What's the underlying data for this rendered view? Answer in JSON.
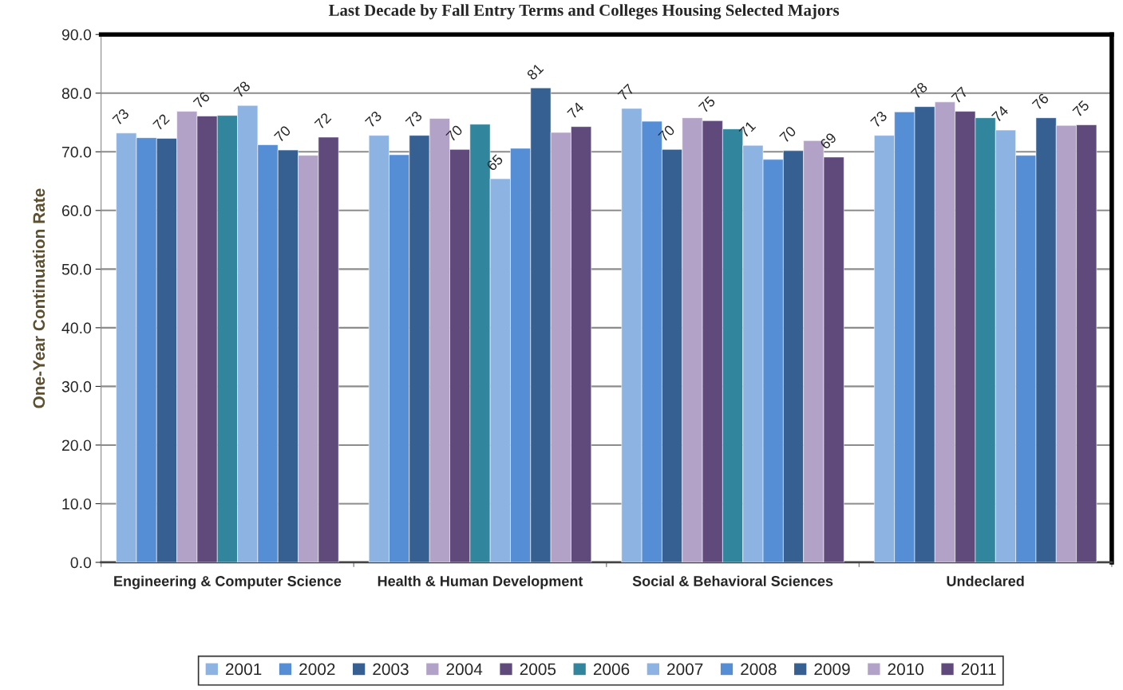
{
  "chart_data": {
    "type": "bar",
    "title": "Last Decade by Fall Entry Terms and Colleges Housing Selected Majors",
    "ylabel": "One-Year Continuation Rate",
    "categories": [
      "Engineering & Computer Science",
      "Health & Human Development",
      "Social & Behavioral Sciences",
      "Undeclared"
    ],
    "series": [
      {
        "name": "2001",
        "color": "#8db3e2",
        "values": [
          73.2,
          72.8,
          77.4,
          72.8
        ],
        "value_labels": [
          "73",
          "73",
          "77",
          "73"
        ]
      },
      {
        "name": "2002",
        "color": "#558ed5",
        "values": [
          72.4,
          69.5,
          75.2,
          76.8
        ]
      },
      {
        "name": "2003",
        "color": "#366092",
        "values": [
          72.3,
          72.8,
          70.4,
          77.7
        ],
        "value_labels": [
          "72",
          "73",
          "70",
          "78"
        ]
      },
      {
        "name": "2004",
        "color": "#b3a2c7",
        "values": [
          76.9,
          75.7,
          75.8,
          78.5
        ]
      },
      {
        "name": "2005",
        "color": "#604a7b",
        "values": [
          76.1,
          70.4,
          75.3,
          76.9
        ],
        "value_labels": [
          "76",
          "70",
          "75",
          "77"
        ]
      },
      {
        "name": "2006",
        "color": "#31859c",
        "values": [
          76.2,
          74.7,
          73.9,
          75.8
        ]
      },
      {
        "name": "2007",
        "color": "#8db3e2",
        "values": [
          77.9,
          65.4,
          71.1,
          73.7
        ],
        "value_labels": [
          "78",
          "65",
          "71",
          "74"
        ]
      },
      {
        "name": "2008",
        "color": "#558ed5",
        "values": [
          71.2,
          70.6,
          68.7,
          69.4
        ]
      },
      {
        "name": "2009",
        "color": "#366092",
        "values": [
          70.3,
          80.9,
          70.2,
          75.8
        ],
        "value_labels": [
          "70",
          "81",
          "70",
          "76"
        ]
      },
      {
        "name": "2010",
        "color": "#b3a2c7",
        "values": [
          69.4,
          73.3,
          71.9,
          74.5
        ]
      },
      {
        "name": "2011",
        "color": "#604a7b",
        "values": [
          72.5,
          74.3,
          69.1,
          74.6
        ],
        "value_labels": [
          "72",
          "74",
          "69",
          "75"
        ]
      }
    ],
    "ylim": [
      0,
      90
    ],
    "yticks": [
      {
        "value": 0,
        "label": "0.0"
      },
      {
        "value": 10,
        "label": "10.0"
      },
      {
        "value": 20,
        "label": "20.0"
      },
      {
        "value": 30,
        "label": "30.0"
      },
      {
        "value": 40,
        "label": "40.0"
      },
      {
        "value": 50,
        "label": "50.0"
      },
      {
        "value": 60,
        "label": "60.0"
      },
      {
        "value": 70,
        "label": "70.0"
      },
      {
        "value": 80,
        "label": "80.0"
      },
      {
        "value": 90,
        "label": "90.0"
      }
    ],
    "grid": "y",
    "legend": "bottom"
  }
}
